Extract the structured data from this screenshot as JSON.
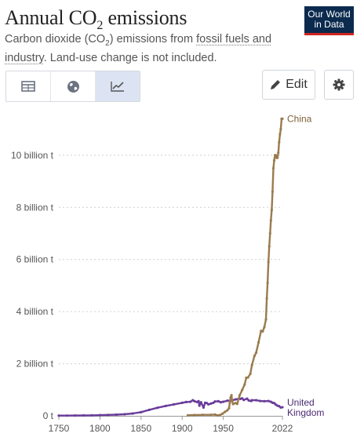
{
  "header": {
    "title_main": "Annual CO",
    "title_sub": "2",
    "title_end": " emissions",
    "subtitle_a": "Carbon dioxide (CO",
    "subtitle_sub": "2",
    "subtitle_b": ") emissions from ",
    "subtitle_link1": "fossil fuels and",
    "subtitle_link2": "industry",
    "subtitle_c": ". Land-use change is not included.",
    "logo_line1": "Our World",
    "logo_line2": "in Data"
  },
  "toolbar": {
    "tabs": [
      {
        "name": "table",
        "icon": "table-icon",
        "active": false
      },
      {
        "name": "map",
        "icon": "globe-icon",
        "active": false
      },
      {
        "name": "chart",
        "icon": "line-chart-icon",
        "active": true
      }
    ],
    "edit_label": "Edit",
    "settings_icon": "gear-icon"
  },
  "chart_data": {
    "type": "line",
    "title": "Annual CO2 emissions",
    "xlabel": "",
    "ylabel": "",
    "xlim": [
      1750,
      2022
    ],
    "ylim": [
      0,
      11500000000
    ],
    "x_ticks": [
      1750,
      1800,
      1850,
      1900,
      1950,
      2022
    ],
    "y_ticks": [
      {
        "value": 0,
        "label": "0 t"
      },
      {
        "value": 2000000000,
        "label": "2 billion t"
      },
      {
        "value": 4000000000,
        "label": "4 billion t"
      },
      {
        "value": 6000000000,
        "label": "6 billion t"
      },
      {
        "value": 8000000000,
        "label": "8 billion t"
      },
      {
        "value": 10000000000,
        "label": "10 billion t"
      }
    ],
    "grid": "horizontal-dotted",
    "series": [
      {
        "name": "China",
        "color": "#9a7b4f",
        "label_lines": [
          "China"
        ],
        "points": [
          [
            1907,
            20000000
          ],
          [
            1915,
            30000000
          ],
          [
            1925,
            40000000
          ],
          [
            1935,
            40000000
          ],
          [
            1940,
            50000000
          ],
          [
            1943,
            15000000
          ],
          [
            1946,
            30000000
          ],
          [
            1949,
            80000000
          ],
          [
            1952,
            150000000
          ],
          [
            1955,
            210000000
          ],
          [
            1957,
            290000000
          ],
          [
            1958,
            500000000
          ],
          [
            1959,
            700000000
          ],
          [
            1960,
            790000000
          ],
          [
            1961,
            560000000
          ],
          [
            1962,
            450000000
          ],
          [
            1965,
            490000000
          ],
          [
            1967,
            460000000
          ],
          [
            1970,
            790000000
          ],
          [
            1973,
            990000000
          ],
          [
            1976,
            1200000000
          ],
          [
            1978,
            1460000000
          ],
          [
            1980,
            1470000000
          ],
          [
            1983,
            1610000000
          ],
          [
            1985,
            1950000000
          ],
          [
            1988,
            2300000000
          ],
          [
            1990,
            2420000000
          ],
          [
            1993,
            2820000000
          ],
          [
            1996,
            3260000000
          ],
          [
            1998,
            3240000000
          ],
          [
            2000,
            3400000000
          ],
          [
            2002,
            3700000000
          ],
          [
            2003,
            4500000000
          ],
          [
            2004,
            5100000000
          ],
          [
            2005,
            5900000000
          ],
          [
            2006,
            6500000000
          ],
          [
            2007,
            7000000000
          ],
          [
            2008,
            7500000000
          ],
          [
            2009,
            7900000000
          ],
          [
            2010,
            8600000000
          ],
          [
            2011,
            9500000000
          ],
          [
            2012,
            9800000000
          ],
          [
            2013,
            10000000000
          ],
          [
            2014,
            10000000000
          ],
          [
            2015,
            9900000000
          ],
          [
            2016,
            9900000000
          ],
          [
            2017,
            10100000000
          ],
          [
            2018,
            10500000000
          ],
          [
            2019,
            10800000000
          ],
          [
            2020,
            11000000000
          ],
          [
            2021,
            11400000000
          ],
          [
            2022,
            11400000000
          ]
        ]
      },
      {
        "name": "United Kingdom",
        "color": "#6a3d9a",
        "label_lines": [
          "United",
          "Kingdom"
        ],
        "points": [
          [
            1750,
            9000000
          ],
          [
            1760,
            10000000
          ],
          [
            1770,
            12000000
          ],
          [
            1780,
            15000000
          ],
          [
            1790,
            18000000
          ],
          [
            1800,
            28000000
          ],
          [
            1810,
            35000000
          ],
          [
            1820,
            45000000
          ],
          [
            1830,
            60000000
          ],
          [
            1840,
            90000000
          ],
          [
            1850,
            140000000
          ],
          [
            1860,
            230000000
          ],
          [
            1870,
            310000000
          ],
          [
            1880,
            380000000
          ],
          [
            1890,
            440000000
          ],
          [
            1900,
            500000000
          ],
          [
            1905,
            530000000
          ],
          [
            1910,
            540000000
          ],
          [
            1913,
            600000000
          ],
          [
            1915,
            560000000
          ],
          [
            1918,
            530000000
          ],
          [
            1920,
            560000000
          ],
          [
            1921,
            390000000
          ],
          [
            1923,
            520000000
          ],
          [
            1926,
            320000000
          ],
          [
            1928,
            500000000
          ],
          [
            1930,
            490000000
          ],
          [
            1932,
            440000000
          ],
          [
            1935,
            470000000
          ],
          [
            1938,
            500000000
          ],
          [
            1940,
            550000000
          ],
          [
            1944,
            560000000
          ],
          [
            1947,
            520000000
          ],
          [
            1950,
            540000000
          ],
          [
            1955,
            580000000
          ],
          [
            1960,
            590000000
          ],
          [
            1965,
            630000000
          ],
          [
            1970,
            660000000
          ],
          [
            1971,
            650000000
          ],
          [
            1973,
            670000000
          ],
          [
            1975,
            610000000
          ],
          [
            1979,
            660000000
          ],
          [
            1981,
            590000000
          ],
          [
            1984,
            570000000
          ],
          [
            1985,
            600000000
          ],
          [
            1990,
            600000000
          ],
          [
            1995,
            570000000
          ],
          [
            2000,
            560000000
          ],
          [
            2005,
            570000000
          ],
          [
            2008,
            540000000
          ],
          [
            2010,
            500000000
          ],
          [
            2012,
            490000000
          ],
          [
            2014,
            430000000
          ],
          [
            2016,
            390000000
          ],
          [
            2018,
            370000000
          ],
          [
            2020,
            320000000
          ],
          [
            2022,
            330000000
          ]
        ]
      }
    ]
  }
}
